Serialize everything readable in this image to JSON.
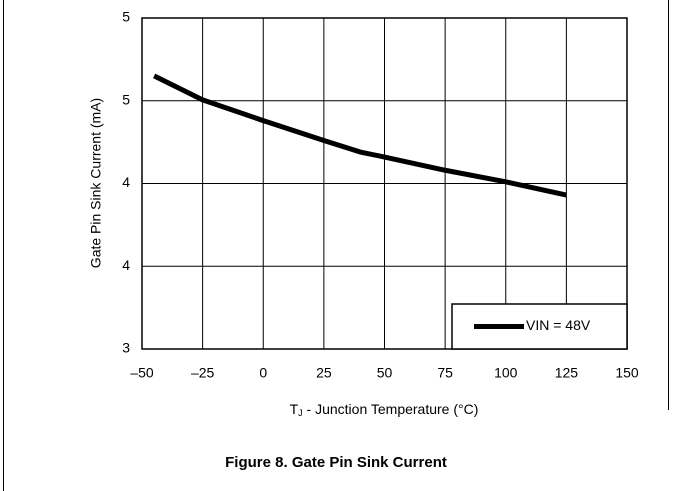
{
  "chart_data": {
    "type": "line",
    "title": "Figure 8. Gate Pin Sink Current",
    "y_label": "Gate Pin Sink Current (mA)",
    "x_label_parts": [
      "T",
      "J",
      " - Junction Temperature (°C)"
    ],
    "x": [
      -45,
      -25,
      0,
      25,
      40,
      50,
      75,
      100,
      125
    ],
    "series": [
      {
        "name": "VIN = 48V",
        "color": "#000000",
        "values": [
          4.65,
          4.505,
          4.38,
          4.26,
          4.19,
          4.16,
          4.08,
          4.01,
          3.93
        ]
      }
    ],
    "xlim": [
      -50,
      150
    ],
    "xticks": [
      {
        "value": -50,
        "label": "–50"
      },
      {
        "value": -25,
        "label": "–25"
      },
      0,
      25,
      50,
      75,
      100,
      125,
      150
    ],
    "ylim": [
      3,
      5
    ],
    "yticks": [
      3,
      {
        "value": 3.5,
        "label": "4"
      },
      4,
      {
        "value": 4.5,
        "label": "5"
      },
      5
    ],
    "grid": true,
    "legend": "lower right"
  }
}
